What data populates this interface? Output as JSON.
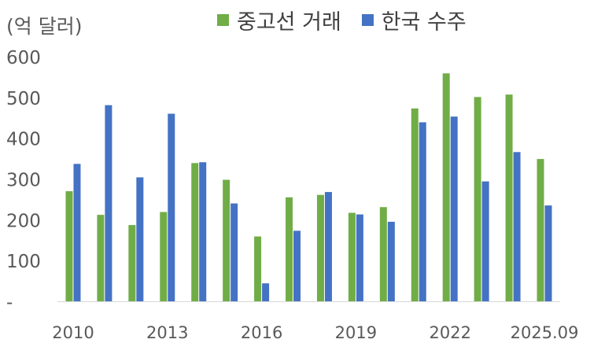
{
  "chart_data": {
    "type": "bar",
    "unit_label": "(억 달러)",
    "x": [
      "2010",
      "2011",
      "2012",
      "2013",
      "2014",
      "2015",
      "2016",
      "2017",
      "2018",
      "2019",
      "2020",
      "2021",
      "2022",
      "2023",
      "2024",
      "2025.09"
    ],
    "x_tick_labels": [
      "2010",
      "2013",
      "2016",
      "2019",
      "2022",
      "2025.09"
    ],
    "y_tick_labels": [
      "-",
      "100",
      "200",
      "300",
      "400",
      "500",
      "600"
    ],
    "ylim": [
      0,
      600
    ],
    "series": [
      {
        "name": "중고선 거래",
        "color": "#70AD47",
        "values": [
          270,
          212,
          187,
          219,
          339,
          298,
          159,
          255,
          261,
          217,
          231,
          473,
          559,
          501,
          507,
          349
        ]
      },
      {
        "name": "한국 수주",
        "color": "#4472C4",
        "values": [
          337,
          481,
          304,
          460,
          341,
          240,
          44,
          173,
          268,
          213,
          195,
          439,
          453,
          294,
          366,
          235
        ]
      }
    ]
  }
}
